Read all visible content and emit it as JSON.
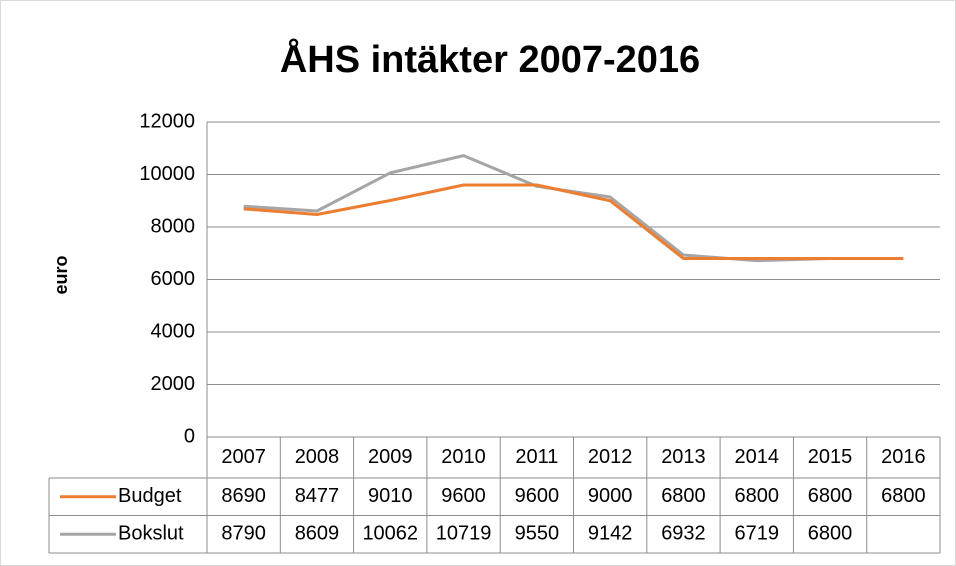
{
  "chart_data": {
    "type": "line",
    "title": "ÅHS intäkter 2007-2016",
    "y_label": "euro",
    "categories": [
      "2007",
      "2008",
      "2009",
      "2010",
      "2011",
      "2012",
      "2013",
      "2014",
      "2015",
      "2016"
    ],
    "series": [
      {
        "name": "Budget",
        "color": "#ed7d31",
        "values": [
          8690,
          8477,
          9010,
          9600,
          9600,
          9000,
          6800,
          6800,
          6800,
          6800
        ]
      },
      {
        "name": "Bokslut",
        "color": "#a5a5a5",
        "values": [
          8790,
          8609,
          10062,
          10719,
          9550,
          9142,
          6932,
          6719,
          6800,
          null
        ]
      }
    ],
    "ylim": [
      0,
      12000
    ],
    "yticks": [
      0,
      2000,
      4000,
      6000,
      8000,
      10000,
      12000
    ],
    "grid": true,
    "data_table": true
  }
}
